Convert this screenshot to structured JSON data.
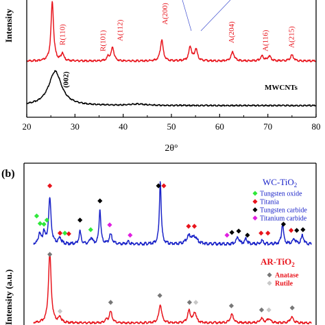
{
  "colors": {
    "ar_tio2": "#e8141c",
    "wc_tio2": "#1a23c8",
    "mwcnts": "#000000",
    "tungsten_oxide": "#2fe83a",
    "titania": "#e8141c",
    "tungsten_carbide": "#000000",
    "titanium_carbide": "#e01ee0",
    "anatase": "#777777",
    "rutile": "#c8c8c8",
    "guide_line": "#4050d0"
  },
  "panel_a": {
    "ylabel": "Intensity",
    "xlabel": "2θ°",
    "xlim": [
      20,
      80
    ],
    "x_ticks": [
      "20",
      "30",
      "40",
      "50",
      "60",
      "70",
      "80"
    ],
    "peak_labels": [
      "R(110)",
      "R(101)",
      "A(112)",
      "A(200)",
      "A(204)",
      "A(116)",
      "A(215)"
    ],
    "mwcnts_peak_label": "(002)",
    "mwcnts_label": "MWCNTs"
  },
  "panel_b": {
    "tag": "(b)",
    "ylabel": "Intensity (a.u.)",
    "wc_title_main": "WC-TiO",
    "wc_title_sub": "2",
    "ar_title_main": "AR-TiO",
    "ar_title_sub": "2",
    "wc_legend": [
      {
        "label": "Tungsten oxide",
        "color": "#2fe83a"
      },
      {
        "label": "Titania",
        "color": "#e8141c"
      },
      {
        "label": "Tungsten carbide",
        "color": "#000000"
      },
      {
        "label": "Titanium carbide",
        "color": "#e01ee0"
      }
    ],
    "ar_legend": [
      {
        "label": "Anatase",
        "color": "#777777"
      },
      {
        "label": "Rutile",
        "color": "#c8c8c8"
      }
    ]
  },
  "chart_data": [
    {
      "type": "line",
      "xlabel": "2θ°",
      "ylabel": "Intensity",
      "xlim": [
        20,
        80
      ],
      "series": [
        {
          "name": "",
          "peaks": [
            {
              "x": 25.3,
              "h": 1.0,
              "w": 0.32
            },
            {
              "x": 27.4,
              "h": 0.13,
              "w": 0.3
            },
            {
              "x": 36.9,
              "h": 0.07,
              "w": 0.3
            },
            {
              "x": 37.8,
              "h": 0.23,
              "w": 0.35
            },
            {
              "x": 48.0,
              "h": 0.36,
              "w": 0.35
            },
            {
              "x": 53.9,
              "h": 0.24,
              "w": 0.35
            },
            {
              "x": 55.1,
              "h": 0.2,
              "w": 0.35
            },
            {
              "x": 62.7,
              "h": 0.15,
              "w": 0.4
            },
            {
              "x": 68.8,
              "h": 0.08,
              "w": 0.4
            },
            {
              "x": 70.3,
              "h": 0.08,
              "w": 0.4
            },
            {
              "x": 75.0,
              "h": 0.1,
              "w": 0.4
            }
          ]
        },
        {
          "name": "MWCNTs",
          "peaks": [
            {
              "x": 25.9,
              "h": 1.0,
              "w": 1.6
            },
            {
              "x": 43.0,
              "h": 0.04,
              "w": 2.0
            }
          ]
        }
      ]
    },
    {
      "type": "line",
      "ylabel": "Intensity (a.u.)",
      "xlim": [
        20,
        80
      ],
      "series": [
        {
          "name": "WC-TiO2",
          "peaks": [
            {
              "x": 23.2,
              "h": 0.18,
              "w": 0.25
            },
            {
              "x": 24.1,
              "h": 0.2,
              "w": 0.25
            },
            {
              "x": 25.3,
              "h": 0.72,
              "w": 0.3
            },
            {
              "x": 27.4,
              "h": 0.1,
              "w": 0.3
            },
            {
              "x": 31.5,
              "h": 0.2,
              "w": 0.25
            },
            {
              "x": 33.8,
              "h": 0.1,
              "w": 0.3
            },
            {
              "x": 35.6,
              "h": 0.55,
              "w": 0.22
            },
            {
              "x": 37.8,
              "h": 0.15,
              "w": 0.35
            },
            {
              "x": 41.4,
              "h": 0.04,
              "w": 0.3
            },
            {
              "x": 48.0,
              "h": 1.0,
              "w": 0.22
            },
            {
              "x": 53.9,
              "h": 0.12,
              "w": 0.6
            },
            {
              "x": 55.1,
              "h": 0.1,
              "w": 0.6
            },
            {
              "x": 63.9,
              "h": 0.11,
              "w": 0.35
            },
            {
              "x": 65.6,
              "h": 0.08,
              "w": 0.3
            },
            {
              "x": 68.9,
              "h": 0.05,
              "w": 0.3
            },
            {
              "x": 73.1,
              "h": 0.32,
              "w": 0.25
            },
            {
              "x": 75.5,
              "h": 0.08,
              "w": 0.3
            },
            {
              "x": 77.2,
              "h": 0.14,
              "w": 0.3
            }
          ]
        },
        {
          "name": "AR-TiO2",
          "peaks": [
            {
              "x": 25.3,
              "h": 1.0,
              "w": 0.33
            },
            {
              "x": 27.4,
              "h": 0.08,
              "w": 0.3
            },
            {
              "x": 36.9,
              "h": 0.04,
              "w": 0.3
            },
            {
              "x": 37.8,
              "h": 0.16,
              "w": 0.35
            },
            {
              "x": 48.0,
              "h": 0.26,
              "w": 0.35
            },
            {
              "x": 53.9,
              "h": 0.17,
              "w": 0.35
            },
            {
              "x": 55.1,
              "h": 0.15,
              "w": 0.35
            },
            {
              "x": 62.7,
              "h": 0.12,
              "w": 0.4
            },
            {
              "x": 68.8,
              "h": 0.06,
              "w": 0.4
            },
            {
              "x": 70.3,
              "h": 0.06,
              "w": 0.4
            },
            {
              "x": 75.0,
              "h": 0.08,
              "w": 0.4
            }
          ]
        }
      ],
      "markers": {
        "WC-TiO2": [
          {
            "x": 22.6,
            "kind": "Tungsten oxide"
          },
          {
            "x": 23.3,
            "kind": "Tungsten oxide"
          },
          {
            "x": 24.1,
            "kind": "Tungsten oxide"
          },
          {
            "x": 24.7,
            "kind": "Tungsten oxide"
          },
          {
            "x": 25.3,
            "kind": "Titania"
          },
          {
            "x": 27.4,
            "kind": "Titania"
          },
          {
            "x": 28.4,
            "kind": "Tungsten oxide"
          },
          {
            "x": 29.2,
            "kind": "Titania"
          },
          {
            "x": 31.5,
            "kind": "Tungsten carbide"
          },
          {
            "x": 33.7,
            "kind": "Tungsten oxide"
          },
          {
            "x": 35.6,
            "kind": "Tungsten carbide"
          },
          {
            "x": 37.6,
            "kind": "Titanium carbide"
          },
          {
            "x": 41.8,
            "kind": "Titanium carbide"
          },
          {
            "x": 47.9,
            "kind": "Tungsten carbide"
          },
          {
            "x": 48.3,
            "kind": "Titania"
          },
          {
            "x": 53.8,
            "kind": "Titania"
          },
          {
            "x": 55.0,
            "kind": "Titania"
          },
          {
            "x": 61.7,
            "kind": "Titanium carbide"
          },
          {
            "x": 62.7,
            "kind": "Tungsten carbide"
          },
          {
            "x": 64.1,
            "kind": "Tungsten carbide"
          },
          {
            "x": 65.9,
            "kind": "Tungsten carbide"
          },
          {
            "x": 68.7,
            "kind": "Titania"
          },
          {
            "x": 70.1,
            "kind": "Titania"
          },
          {
            "x": 73.3,
            "kind": "Tungsten carbide"
          },
          {
            "x": 75.3,
            "kind": "Titania"
          },
          {
            "x": 75.6,
            "kind": "Tungsten carbide"
          },
          {
            "x": 77.3,
            "kind": "Tungsten carbide"
          }
        ],
        "AR-TiO2": [
          {
            "x": 25.3,
            "kind": "Anatase"
          },
          {
            "x": 27.4,
            "kind": "Rutile"
          },
          {
            "x": 37.8,
            "kind": "Anatase"
          },
          {
            "x": 47.9,
            "kind": "Anatase"
          },
          {
            "x": 54.0,
            "kind": "Anatase"
          },
          {
            "x": 55.3,
            "kind": "Rutile"
          },
          {
            "x": 62.6,
            "kind": "Anatase"
          },
          {
            "x": 68.8,
            "kind": "Anatase"
          },
          {
            "x": 70.3,
            "kind": "Rutile"
          },
          {
            "x": 75.1,
            "kind": "Anatase"
          }
        ]
      }
    }
  ]
}
